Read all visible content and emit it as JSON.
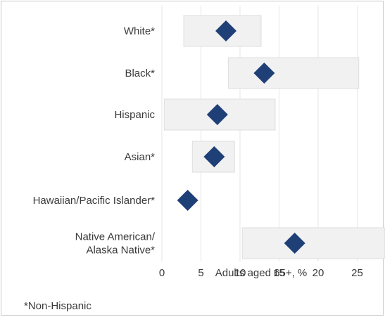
{
  "chart_data": {
    "type": "scatter",
    "categories": [
      [
        "White*"
      ],
      [
        "Black*"
      ],
      [
        "Hispanic"
      ],
      [
        "Asian*"
      ],
      [
        "Hawaiian/Pacific Islander*"
      ],
      [
        "Native American/",
        "Alaska Native*"
      ]
    ],
    "values": [
      8.2,
      13.1,
      7.1,
      6.7,
      3.3,
      17.0
    ],
    "ranges": [
      [
        2.8,
        12.7
      ],
      [
        8.5,
        25.2
      ],
      [
        0.3,
        14.5
      ],
      [
        3.9,
        9.3
      ],
      null,
      [
        10.3,
        28.5
      ]
    ],
    "xlabel": "Adults aged 65+, %",
    "ylabel": "",
    "xlim": [
      0,
      28.5
    ],
    "xticks": [
      0,
      5,
      10,
      15,
      20,
      25
    ],
    "grid": "vertical",
    "colors": {
      "marker": "#1f3f77",
      "range_fill": "#f1f1f1",
      "range_stroke": "#dedede",
      "grid": "#e6e6e6"
    }
  },
  "footnote": "*Non-Hispanic"
}
